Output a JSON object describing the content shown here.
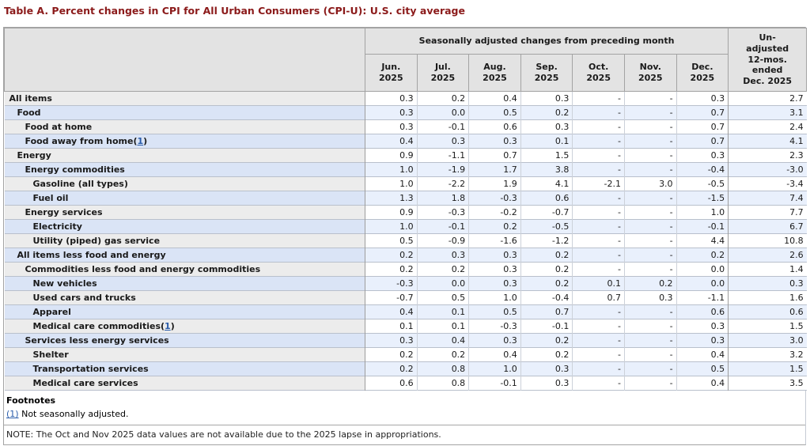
{
  "title": "Table A. Percent changes in CPI for All Urban Consumers (CPI-U): U.S. city average",
  "colors": {
    "title_maroon": "#8b1a1a",
    "link_blue": "#2a5caa",
    "row_blue_stub": "#dae4f6",
    "row_blue_data": "#e9f0fc",
    "row_gray_stub": "#ececec",
    "header_gray": "#e3e3e3"
  },
  "table": {
    "group_header": "Seasonally adjusted changes from preceding month",
    "month_columns": [
      {
        "month": "Jun.",
        "year": "2025"
      },
      {
        "month": "Jul.",
        "year": "2025"
      },
      {
        "month": "Aug.",
        "year": "2025"
      },
      {
        "month": "Sep.",
        "year": "2025"
      },
      {
        "month": "Oct.",
        "year": "2025"
      },
      {
        "month": "Nov.",
        "year": "2025"
      },
      {
        "month": "Dec.",
        "year": "2025"
      }
    ],
    "unadjusted_header_lines": [
      "Un-",
      "adjusted",
      "12-mos.",
      "ended",
      "Dec. 2025"
    ],
    "rows": [
      {
        "label": "All items",
        "indent": 0,
        "footnote": null,
        "values": [
          "0.3",
          "0.2",
          "0.4",
          "0.3",
          "-",
          "-",
          "0.3",
          "2.7"
        ]
      },
      {
        "label": "Food",
        "indent": 1,
        "footnote": null,
        "values": [
          "0.3",
          "0.0",
          "0.5",
          "0.2",
          "-",
          "-",
          "0.7",
          "3.1"
        ]
      },
      {
        "label": "Food at home",
        "indent": 2,
        "footnote": null,
        "values": [
          "0.3",
          "-0.1",
          "0.6",
          "0.3",
          "-",
          "-",
          "0.7",
          "2.4"
        ]
      },
      {
        "label": "Food away from home",
        "indent": 2,
        "footnote": "1",
        "values": [
          "0.4",
          "0.3",
          "0.3",
          "0.1",
          "-",
          "-",
          "0.7",
          "4.1"
        ]
      },
      {
        "label": "Energy",
        "indent": 1,
        "footnote": null,
        "values": [
          "0.9",
          "-1.1",
          "0.7",
          "1.5",
          "-",
          "-",
          "0.3",
          "2.3"
        ]
      },
      {
        "label": "Energy commodities",
        "indent": 2,
        "footnote": null,
        "values": [
          "1.0",
          "-1.9",
          "1.7",
          "3.8",
          "-",
          "-",
          "-0.4",
          "-3.0"
        ]
      },
      {
        "label": "Gasoline (all types)",
        "indent": 3,
        "footnote": null,
        "values": [
          "1.0",
          "-2.2",
          "1.9",
          "4.1",
          "-2.1",
          "3.0",
          "-0.5",
          "-3.4"
        ]
      },
      {
        "label": "Fuel oil",
        "indent": 3,
        "footnote": null,
        "values": [
          "1.3",
          "1.8",
          "-0.3",
          "0.6",
          "-",
          "-",
          "-1.5",
          "7.4"
        ]
      },
      {
        "label": "Energy services",
        "indent": 2,
        "footnote": null,
        "values": [
          "0.9",
          "-0.3",
          "-0.2",
          "-0.7",
          "-",
          "-",
          "1.0",
          "7.7"
        ]
      },
      {
        "label": "Electricity",
        "indent": 3,
        "footnote": null,
        "values": [
          "1.0",
          "-0.1",
          "0.2",
          "-0.5",
          "-",
          "-",
          "-0.1",
          "6.7"
        ]
      },
      {
        "label": "Utility (piped) gas service",
        "indent": 3,
        "footnote": null,
        "values": [
          "0.5",
          "-0.9",
          "-1.6",
          "-1.2",
          "-",
          "-",
          "4.4",
          "10.8"
        ]
      },
      {
        "label": "All items less food and energy",
        "indent": 1,
        "footnote": null,
        "values": [
          "0.2",
          "0.3",
          "0.3",
          "0.2",
          "-",
          "-",
          "0.2",
          "2.6"
        ]
      },
      {
        "label": "Commodities less food and energy commodities",
        "indent": 2,
        "footnote": null,
        "values": [
          "0.2",
          "0.2",
          "0.3",
          "0.2",
          "-",
          "-",
          "0.0",
          "1.4"
        ]
      },
      {
        "label": "New vehicles",
        "indent": 3,
        "footnote": null,
        "values": [
          "-0.3",
          "0.0",
          "0.3",
          "0.2",
          "0.1",
          "0.2",
          "0.0",
          "0.3"
        ]
      },
      {
        "label": "Used cars and trucks",
        "indent": 3,
        "footnote": null,
        "values": [
          "-0.7",
          "0.5",
          "1.0",
          "-0.4",
          "0.7",
          "0.3",
          "-1.1",
          "1.6"
        ]
      },
      {
        "label": "Apparel",
        "indent": 3,
        "footnote": null,
        "values": [
          "0.4",
          "0.1",
          "0.5",
          "0.7",
          "-",
          "-",
          "0.6",
          "0.6"
        ]
      },
      {
        "label": "Medical care commodities",
        "indent": 3,
        "footnote": "1",
        "values": [
          "0.1",
          "0.1",
          "-0.3",
          "-0.1",
          "-",
          "-",
          "0.3",
          "1.5"
        ]
      },
      {
        "label": "Services less energy services",
        "indent": 2,
        "footnote": null,
        "values": [
          "0.3",
          "0.4",
          "0.3",
          "0.2",
          "-",
          "-",
          "0.3",
          "3.0"
        ]
      },
      {
        "label": "Shelter",
        "indent": 3,
        "footnote": null,
        "values": [
          "0.2",
          "0.2",
          "0.4",
          "0.2",
          "-",
          "-",
          "0.4",
          "3.2"
        ]
      },
      {
        "label": "Transportation services",
        "indent": 3,
        "footnote": null,
        "values": [
          "0.2",
          "0.8",
          "1.0",
          "0.3",
          "-",
          "-",
          "0.5",
          "1.5"
        ]
      },
      {
        "label": "Medical care services",
        "indent": 3,
        "footnote": null,
        "values": [
          "0.6",
          "0.8",
          "-0.1",
          "0.3",
          "-",
          "-",
          "0.4",
          "3.5"
        ]
      }
    ]
  },
  "footnotes": {
    "title": "Footnotes",
    "items": [
      {
        "ref": "(1)",
        "text": "Not seasonally adjusted."
      }
    ]
  },
  "note": "NOTE: The Oct and Nov 2025 data values are not available due to the 2025 lapse in appropriations."
}
